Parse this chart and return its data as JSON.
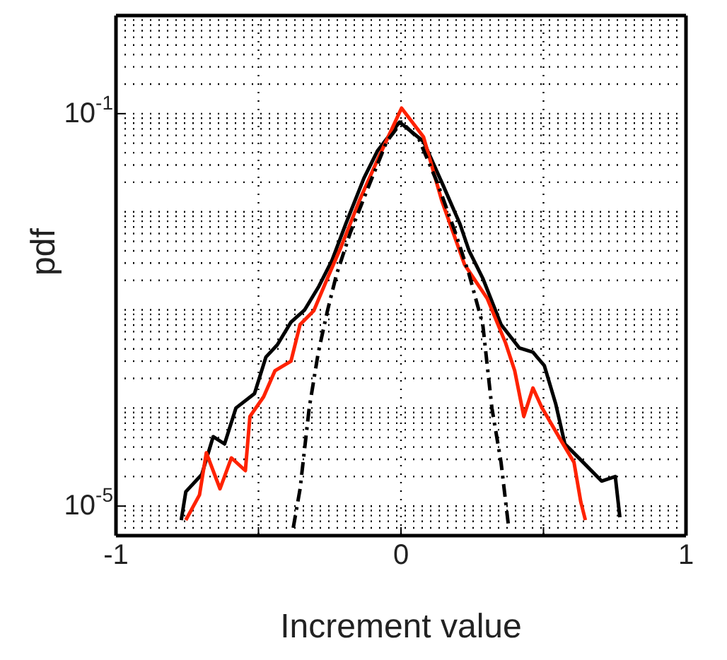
{
  "chart_data": {
    "type": "line",
    "xlabel": "Increment value",
    "ylabel": "pdf",
    "log": "y",
    "grid": true,
    "marker": "none",
    "xlim": [
      -1,
      1
    ],
    "xticks": [
      -1,
      {
        "value": -0.5,
        "label": null
      },
      0,
      {
        "value": 0.5,
        "label": null
      },
      1
    ],
    "ylim": [
      5e-06,
      1
    ],
    "yticks": [
      {
        "value": 0.1,
        "label": "10$^{-1}$"
      },
      {
        "value": 1e-05,
        "label": "10$^{-5}$"
      }
    ],
    "series": [
      {
        "color": "#000000",
        "line_style": "solid",
        "x": [
          -0.771,
          -0.755,
          -0.699,
          -0.659,
          -0.619,
          -0.579,
          -0.514,
          -0.474,
          -0.434,
          -0.386,
          -0.338,
          -0.29,
          -0.242,
          -0.194,
          -0.13,
          -0.082,
          -0.005,
          0.079,
          0.143,
          0.207,
          0.239,
          0.287,
          0.351,
          0.415,
          0.463,
          0.503,
          0.543,
          0.575,
          0.639,
          0.704,
          0.752,
          0.768
        ],
        "values": [
          7.2e-06,
          1.4e-05,
          2.1e-05,
          5.1e-05,
          4.3e-05,
          0.0001,
          0.00014,
          0.00033,
          0.00044,
          0.00075,
          0.001,
          0.0017,
          0.0032,
          0.0075,
          0.022,
          0.042,
          0.082,
          0.052,
          0.02,
          0.0075,
          0.004,
          0.0021,
          0.00071,
          0.00041,
          0.00037,
          0.00027,
          0.00011,
          4.3e-05,
          2.8e-05,
          1.8e-05,
          2e-05,
          7.7e-06
        ]
      },
      {
        "color": "#ff2200",
        "line_style": "solid",
        "x": [
          -0.755,
          -0.707,
          -0.683,
          -0.635,
          -0.595,
          -0.546,
          -0.53,
          -0.482,
          -0.442,
          -0.386,
          -0.354,
          -0.306,
          -0.258,
          -0.21,
          -0.146,
          -0.082,
          0.002,
          0.079,
          0.143,
          0.223,
          0.303,
          0.367,
          0.399,
          0.431,
          0.463,
          0.495,
          0.559,
          0.607,
          0.631,
          0.647
        ],
        "values": [
          7.2e-06,
          1.3e-05,
          3.5e-05,
          1.5e-05,
          3.1e-05,
          2.3e-05,
          8.2e-05,
          0.00013,
          0.00024,
          0.0003,
          0.00071,
          0.00098,
          0.0021,
          0.0044,
          0.013,
          0.034,
          0.114,
          0.058,
          0.013,
          0.0029,
          0.0013,
          0.00046,
          0.00024,
          8.2e-05,
          0.00016,
          0.0001,
          4.8e-05,
          2.8e-05,
          1.1e-05,
          7.2e-06
        ]
      },
      {
        "color": "#000000",
        "line_style": "dashed",
        "x": [
          -0.378,
          -0.354,
          -0.322,
          -0.29,
          -0.258,
          -0.226,
          -0.178,
          -0.114,
          -0.05,
          0.002,
          0.063,
          0.127,
          0.191,
          0.239,
          0.287,
          0.319,
          0.351,
          0.378
        ],
        "values": [
          6e-06,
          1.5e-05,
          0.0001,
          0.00037,
          0.00098,
          0.0023,
          0.0061,
          0.018,
          0.052,
          0.082,
          0.055,
          0.02,
          0.0061,
          0.0023,
          0.00071,
          0.0001,
          2.8e-05,
          6e-06
        ]
      }
    ]
  }
}
